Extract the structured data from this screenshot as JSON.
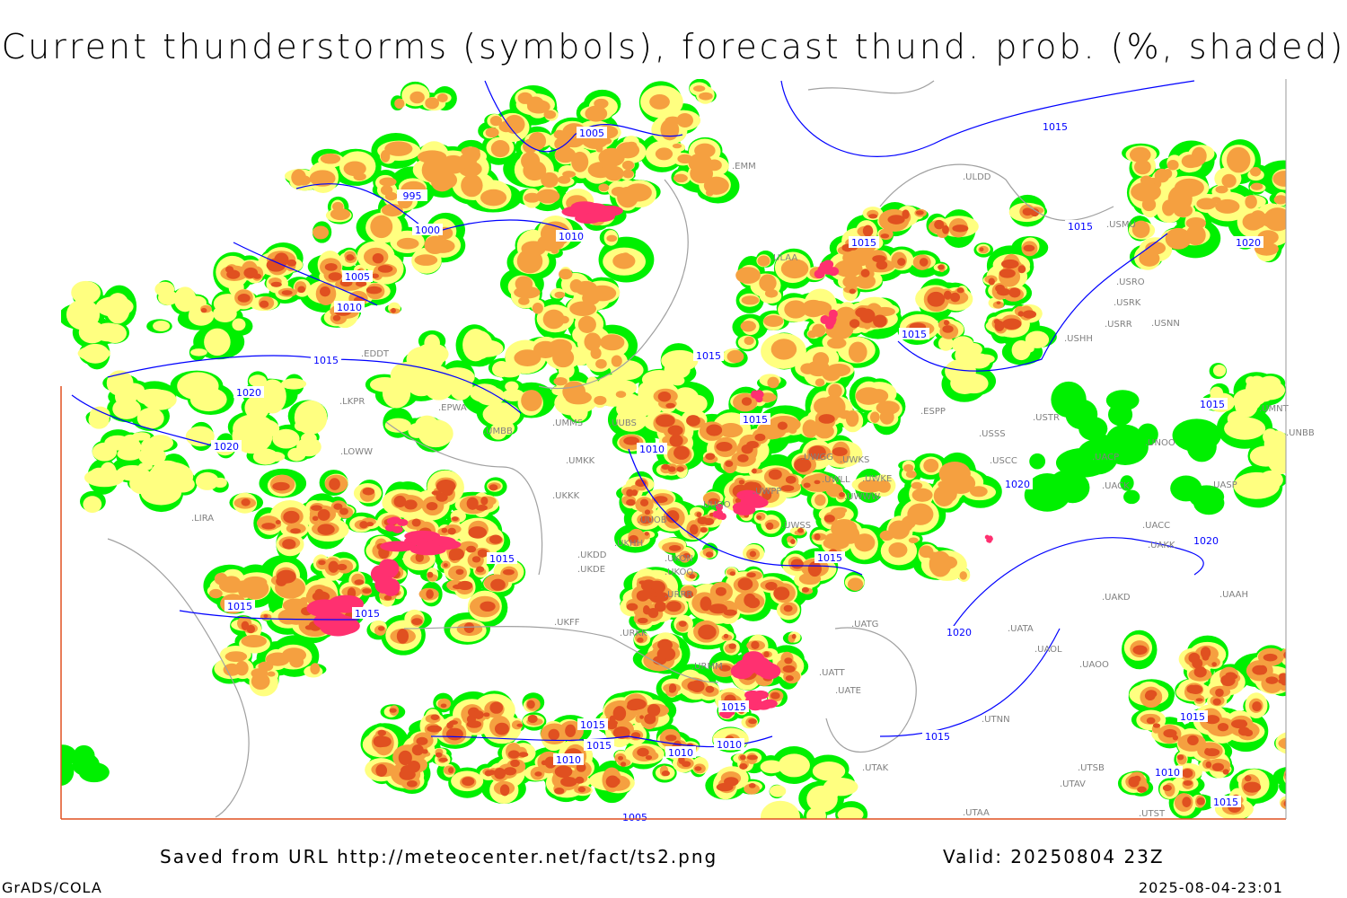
{
  "title": "Current thunderstorms (symbols), forecast thund. prob. (%, shaded)",
  "footer": {
    "saved_from": "Saved from URL http://meteocenter.net/fact/ts2.png",
    "valid": "Valid: 20250804 23Z",
    "software": "GrADS/COLA",
    "timestamp": "2025-08-04-23:01"
  },
  "colors": {
    "prob_low": "#00f000",
    "prob_mid": "#ffff80",
    "prob_high": "#f5a040",
    "prob_very_high": "#e05020",
    "thunderstorm_symbols": "#ff3070",
    "isobars": "#0000ff",
    "coastlines": "#a0a0a0",
    "frame": "#e05020"
  },
  "isobar_labels": [
    "1005",
    "995",
    "1000",
    "1010",
    "1005",
    "1010",
    "1015",
    "1020",
    "1020",
    "1015",
    "1015",
    "1015",
    "1015",
    "1010",
    "1015",
    "1015",
    "1020",
    "1015",
    "1020",
    "1015",
    "1015",
    "1020",
    "1020",
    "1015",
    "1015",
    "1010",
    "1010",
    "1015",
    "1015",
    "1015",
    "1010",
    "1005",
    "1015",
    "1010",
    "1015",
    "1015"
  ],
  "station_labels": [
    "EMM",
    "ULDD",
    "ULAA",
    "USMU",
    "USRO",
    "USRK",
    "USRR",
    "USNN",
    "USHH",
    "UMNT",
    "UNBB",
    "UNOO",
    "USSS",
    "USTR",
    "USCC",
    "UACP",
    "UACK",
    "UASP",
    "UACC",
    "UAKK",
    "UAAH",
    "UAKD",
    "UATA",
    "UAOL",
    "UAOO",
    "UTNN",
    "UTAK",
    "UTSB",
    "UTAV",
    "UTAA",
    "UTST",
    "EPWA",
    "UMMS",
    "UMBB",
    "UUBS",
    "UKKK",
    "UUOB",
    "UKHH",
    "UKDD",
    "UKDE",
    "UKOO",
    "URRR",
    "URKK",
    "URMM",
    "UKFF",
    "LKPR",
    "LOWW",
    "EDDT",
    "LIRA",
    "UWGG",
    "UWKS",
    "UWKE",
    "UWPP",
    "UWSS",
    "UWWW",
    "UUOO",
    "UKON",
    "UATG",
    "UATE",
    "UATT",
    "UMKK",
    "ESPP",
    "UWLL"
  ]
}
